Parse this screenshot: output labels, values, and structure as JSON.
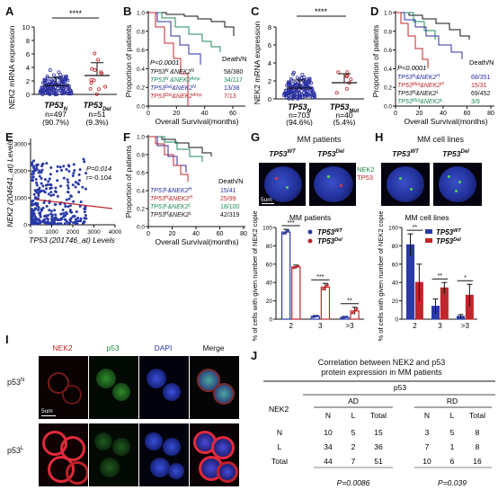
{
  "panels": {
    "A": {
      "label": "A",
      "ylabel": "NEK2 mRNA expression",
      "sig": "****",
      "groups": [
        {
          "name": "TP53",
          "sup": "N",
          "n": "n=497",
          "pct": "(90.7%)"
        },
        {
          "name": "TP53",
          "sup": "Del",
          "n": "n=51",
          "pct": "(9.3%)"
        }
      ],
      "yticks": [
        "0",
        "2",
        "4",
        "6",
        "8",
        "10"
      ]
    },
    "B": {
      "label": "B",
      "ylabel": "Proportion of patients",
      "xlabel": "Overall Survival(months)",
      "yticks": [
        "0.0",
        "0.2",
        "0.4",
        "0.6",
        "0.8",
        "1.0"
      ],
      "xticks": [
        "0",
        "20",
        "40",
        "60"
      ],
      "pvalue": "P<0.0001",
      "header": "Death/N",
      "legend": [
        {
          "label": "TP53",
          "sup": "N",
          "mid": " &NEK2",
          "sup2": "N",
          "value": "58/380",
          "color": "#111111"
        },
        {
          "label": "TP53",
          "sup": "N",
          "mid": " &NEK2",
          "sup2": "Amp",
          "value": "34/117",
          "color": "#1e8a5a"
        },
        {
          "label": "TP53",
          "sup": "Del",
          "mid": "&NEK2",
          "sup2": "N",
          "value": "13/38",
          "color": "#2a2fa0"
        },
        {
          "label": "TP53",
          "sup": "Del",
          "mid": "&NEK2",
          "sup2": "Amp",
          "value": "7/13",
          "color": "#c0262b"
        }
      ]
    },
    "C": {
      "label": "C",
      "ylabel": "NEK2 mRNA expression",
      "sig": "****",
      "groups": [
        {
          "name": "TP53",
          "sup": "N",
          "n": "n=703",
          "pct": "(94.6%)"
        },
        {
          "name": "TP53",
          "sup": "Mut",
          "n": "n=40",
          "pct": "(5.4%)"
        }
      ],
      "yticks": [
        "0",
        "2",
        "4",
        "6",
        "8"
      ]
    },
    "D": {
      "label": "D",
      "ylabel": "Proportion of patients",
      "xlabel": "Overall Survival(months)",
      "yticks": [
        "0.0",
        "0.2",
        "0.4",
        "0.6",
        "0.8",
        "1.0"
      ],
      "xticks": [
        "0",
        "20",
        "40",
        "60",
        "80"
      ],
      "pvalue": "P<0.0001",
      "header": "Death/N",
      "legend": [
        {
          "label": "TP53",
          "sup": "N",
          "mid": "&NEK2",
          "sup2": "H",
          "value": "68/351",
          "color": "#2a2fa0"
        },
        {
          "label": "TP53",
          "sup": "Mut",
          "mid": "&NEK2",
          "sup2": "H",
          "value": "15/31",
          "color": "#c0262b"
        },
        {
          "label": "TP53",
          "sup": "N",
          "mid": "&NEK2",
          "sup2": "L",
          "value": "69/452",
          "color": "#111111"
        },
        {
          "label": "TP53",
          "sup": "Mut",
          "mid": "&NEK2",
          "sup2": "L",
          "value": "3/9",
          "color": "#1e8a5a"
        }
      ]
    },
    "E": {
      "label": "E",
      "ylabel": "NEK2 (204641_at) Levels",
      "xlabel": "TP53 (201746_at) Levels",
      "pvalue": "P=0.014",
      "r": "r=-0.104",
      "xticks": [
        "0",
        "1000",
        "2000",
        "3000",
        "4000"
      ],
      "yticks": [
        "0",
        "1000",
        "2000",
        "3000"
      ]
    },
    "F": {
      "label": "F",
      "ylabel": "Proportion of patients",
      "xlabel": "Overall Survival(months)",
      "yticks": [
        "0.0",
        "0.2",
        "0.4",
        "0.6",
        "0.8",
        "1.0"
      ],
      "xticks": [
        "0",
        "20",
        "40",
        "60",
        "80"
      ],
      "header": "Death/N",
      "legend": [
        {
          "label": "TP53",
          "sup": "L",
          "mid": "&NEK2",
          "sup2": "H",
          "value": "15/41",
          "color": "#2a2fa0"
        },
        {
          "label": "TP53",
          "sup": "H",
          "mid": "&NEK2",
          "sup2": "H",
          "value": "25/99",
          "color": "#c0262b"
        },
        {
          "label": "TP53",
          "sup": "L",
          "mid": "&NEK2",
          "sup2": "L",
          "value": "18/100",
          "color": "#1e8a5a"
        },
        {
          "label": "TP53",
          "sup": "H",
          "mid": "&NEK2",
          "sup2": "L",
          "value": "42/319",
          "color": "#111111"
        }
      ]
    },
    "G": {
      "label": "G",
      "title": "MM patients",
      "img_labels": [
        {
          "name": "TP53",
          "sup": "WT"
        },
        {
          "name": "TP53",
          "sup": "Del"
        }
      ],
      "stain_legend": [
        "NEK2",
        "TP53"
      ],
      "scale": "5um",
      "chart_title": "MM patients",
      "ylabel": "% of cells with given number of NEK2 copies",
      "legend": [
        {
          "name": "TP53",
          "sup": "WT"
        },
        {
          "name": "TP53",
          "sup": "Del"
        }
      ],
      "xticks": [
        "2",
        "3",
        ">3"
      ],
      "yticks": [
        "0",
        "20",
        "40",
        "60",
        "80",
        "100"
      ],
      "sigs": [
        "***",
        "***",
        "**"
      ]
    },
    "H": {
      "label": "H",
      "title": "MM cell lines",
      "img_labels": [
        {
          "name": "TP53",
          "sup": "WT"
        },
        {
          "name": "TP53",
          "sup": "Del"
        }
      ],
      "chart_title": "MM cell lines",
      "ylabel": "% of cells with given number of NEK2 copies",
      "legend": [
        {
          "name": "TP53",
          "sup": "WT"
        },
        {
          "name": "TP53",
          "sup": "Del"
        }
      ],
      "xticks": [
        "2",
        "3",
        ">3"
      ],
      "yticks": [
        "0",
        "20",
        "40",
        "60",
        "80",
        "100"
      ],
      "sigs": [
        "**",
        "**",
        "*"
      ]
    },
    "I": {
      "label": "I",
      "cols": [
        "NEK2",
        "p53",
        "DAPI",
        "Merge"
      ],
      "rows": [
        {
          "name": "p53",
          "sup": "N"
        },
        {
          "name": "p53",
          "sup": "L"
        }
      ],
      "scale": "5um"
    },
    "J": {
      "label": "J",
      "title_line1": "Correlation between NEK2 and p53",
      "title_line2": "protein expression in MM patients",
      "p53": "p53",
      "row_header": "NEK2",
      "groups": [
        "AD",
        "RD"
      ],
      "sub_headers": [
        "N",
        "L",
        "Total",
        "N",
        "L",
        "Total"
      ],
      "rows": [
        {
          "label": "N",
          "cells": [
            "10",
            "5",
            "15",
            "3",
            "5",
            "8"
          ]
        },
        {
          "label": "L",
          "cells": [
            "34",
            "2",
            "36",
            "7",
            "1",
            "8"
          ]
        },
        {
          "label": "Total",
          "cells": [
            "44",
            "7",
            "51",
            "10",
            "6",
            "16"
          ]
        }
      ],
      "pvalues": [
        "P=0.0086",
        "P=0.039"
      ]
    }
  },
  "chart_data": [
    {
      "panel": "G",
      "type": "bar",
      "categories": [
        "2",
        "3",
        ">3"
      ],
      "ylabel": "% of cells with given number of NEK2 copies",
      "ylim": [
        0,
        100
      ],
      "series": [
        {
          "name": "TP53WT",
          "values": [
            95,
            3,
            2
          ],
          "errors": [
            3,
            1,
            1
          ],
          "color": "#2a3aa8"
        },
        {
          "name": "TP53Del",
          "values": [
            57,
            35,
            9
          ],
          "errors": [
            2,
            4,
            4
          ],
          "color": "#c0262b"
        }
      ]
    },
    {
      "panel": "H",
      "type": "bar",
      "categories": [
        "2",
        "3",
        ">3"
      ],
      "ylabel": "% of cells with given number of NEK2 copies",
      "ylim": [
        0,
        100
      ],
      "series": [
        {
          "name": "TP53WT",
          "values": [
            81,
            14,
            3
          ],
          "errors": [
            12,
            8,
            2
          ],
          "color": "#2a3aa8"
        },
        {
          "name": "TP53Del",
          "values": [
            40,
            34,
            26
          ],
          "errors": [
            20,
            6,
            12
          ],
          "color": "#c0262b"
        }
      ]
    },
    {
      "panel": "A",
      "type": "scatter",
      "groups": [
        "TP53N",
        "TP53Del"
      ],
      "means": [
        1.3,
        2.8
      ],
      "sds": [
        1.2,
        1.9
      ],
      "n": [
        497,
        51
      ],
      "colors": [
        "#2a2fa0",
        "#c0262b"
      ]
    },
    {
      "panel": "C",
      "type": "scatter",
      "groups": [
        "TP53N",
        "TP53Mut"
      ],
      "means": [
        1.2,
        1.8
      ],
      "sds": [
        0.9,
        1.0
      ],
      "n": [
        703,
        40
      ],
      "colors": [
        "#2a2fa0",
        "#c0262b"
      ]
    }
  ]
}
